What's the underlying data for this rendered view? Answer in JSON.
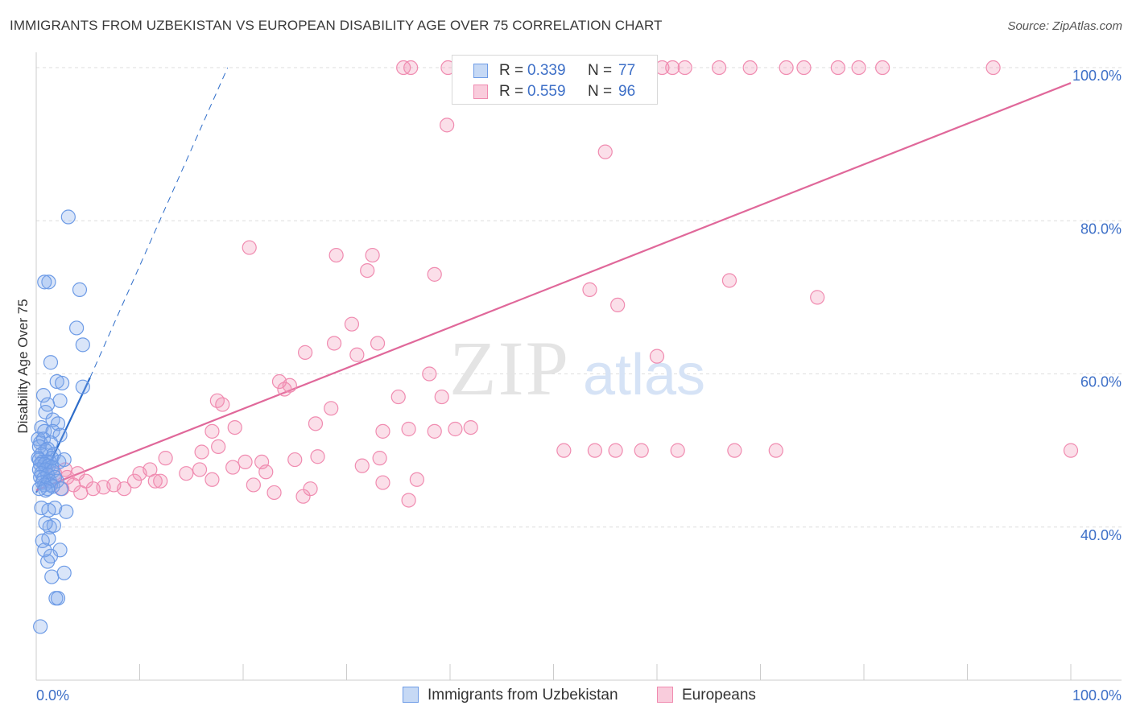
{
  "chart_data": {
    "type": "scatter",
    "title": "IMMIGRANTS FROM UZBEKISTAN VS EUROPEAN DISABILITY AGE OVER 75 CORRELATION CHART",
    "source": "Source: ZipAtlas.com",
    "xlabel": "",
    "ylabel": "Disability Age Over 75",
    "xlim": [
      0,
      105
    ],
    "ylim": [
      20,
      102
    ],
    "x_tick_labels": [
      "0.0%",
      "100.0%"
    ],
    "y_tick_labels": [
      "40.0%",
      "60.0%",
      "80.0%",
      "100.0%"
    ],
    "y_gridlines": [
      40,
      60,
      80,
      100
    ],
    "watermark": {
      "zip": "ZIP",
      "atlas": "atlas"
    },
    "legend": [
      {
        "r_label": "R =",
        "r_value": "0.339",
        "n_label": "N =",
        "n_value": "77"
      },
      {
        "r_label": "R =",
        "r_value": "0.559",
        "n_label": "N =",
        "n_value": "96"
      }
    ],
    "series": [
      {
        "name": "Immigrants from Uzbekistan",
        "color": "#6d9be6",
        "line_color": "#2d6cc9",
        "trend": {
          "x0": 0,
          "y0": 44.5,
          "x1": 5.2,
          "y1": 59.5,
          "dash_to_x": 18.5,
          "dash_to_y": 100
        },
        "x": [
          3.1,
          1.2,
          0.8,
          4.2,
          3.9,
          4.5,
          1.4,
          2.0,
          2.5,
          2.3,
          0.7,
          1.1,
          0.9,
          1.6,
          0.5,
          2.1,
          0.8,
          1.6,
          2.3,
          0.2,
          0.7,
          0.4,
          1.4,
          0.3,
          1.1,
          0.9,
          1.7,
          0.5,
          0.2,
          1.5,
          0.3,
          1.3,
          0.6,
          1.0,
          2.2,
          0.4,
          0.8,
          1.2,
          1.5,
          2.7,
          0.3,
          0.9,
          1.6,
          0.5,
          1.1,
          1.8,
          0.4,
          0.7,
          1.3,
          2.0,
          0.6,
          1.4,
          0.8,
          1.6,
          1.1,
          2.4,
          0.9,
          1.8,
          1.2,
          2.9,
          2.7,
          1.3,
          1.7,
          4.5,
          2.3,
          1.2,
          0.6,
          1.4,
          0.8,
          1.5,
          1.1,
          0.5,
          0.9,
          0.3,
          1.9,
          2.1,
          0.4
        ],
        "y": [
          80.5,
          72.0,
          72.0,
          71.0,
          66.0,
          63.8,
          61.5,
          59.0,
          58.8,
          56.5,
          57.2,
          56.0,
          55.0,
          54.0,
          53.0,
          53.5,
          52.5,
          52.5,
          52.0,
          51.5,
          51.5,
          51.0,
          51.0,
          50.5,
          50.2,
          50.0,
          49.5,
          49.5,
          49.0,
          49.0,
          48.8,
          48.5,
          48.5,
          48.5,
          48.5,
          48.2,
          48.2,
          48.0,
          47.8,
          48.8,
          47.5,
          47.5,
          47.3,
          47.0,
          46.8,
          46.5,
          46.5,
          46.3,
          46.0,
          46.0,
          45.8,
          45.5,
          45.5,
          45.3,
          45.0,
          45.0,
          44.8,
          42.5,
          42.2,
          42.0,
          34.0,
          40.0,
          40.2,
          58.3,
          37.0,
          38.5,
          38.2,
          36.2,
          37.0,
          33.5,
          35.5,
          42.5,
          40.5,
          45.0,
          30.7,
          30.7,
          27.0
        ],
        "points_note": "approximate positions read from plot"
      },
      {
        "name": "Europeans",
        "color": "#f08bb0",
        "line_color": "#e0689a",
        "trend": {
          "x0": 0,
          "y0": 44.8,
          "x1": 100,
          "y1": 98.0
        },
        "x": [
          35.5,
          36.2,
          39.8,
          42.4,
          46.5,
          60.5,
          61.5,
          62.7,
          66.0,
          69.0,
          72.5,
          74.2,
          77.5,
          79.5,
          81.8,
          92.5,
          39.7,
          55.0,
          20.6,
          32.5,
          29.0,
          32.0,
          38.5,
          53.5,
          56.2,
          60.0,
          67.0,
          75.5,
          23.5,
          30.5,
          26.0,
          33.0,
          35.0,
          28.8,
          39.2,
          38.0,
          31.0,
          24.0,
          17.0,
          19.2,
          28.5,
          17.5,
          18.0,
          24.5,
          33.5,
          38.5,
          42.0,
          27.0,
          31.5,
          36.0,
          40.5,
          51.0,
          54.0,
          56.0,
          58.5,
          62.0,
          67.5,
          71.5,
          100.0,
          16.0,
          17.6,
          12.5,
          14.5,
          15.8,
          11.0,
          11.5,
          10.0,
          12.0,
          17.0,
          19.0,
          20.2,
          21.8,
          27.2,
          25.0,
          9.5,
          8.5,
          7.5,
          6.5,
          5.5,
          4.8,
          4.3,
          3.6,
          2.5,
          3.0,
          1.8,
          4.0,
          2.8,
          21.0,
          25.8,
          23.0,
          26.5,
          22.2,
          33.5,
          36.8,
          33.2,
          36.0
        ],
        "y": [
          100.0,
          100.0,
          100.0,
          100.0,
          100.0,
          100.0,
          100.0,
          100.0,
          100.0,
          100.0,
          100.0,
          100.0,
          100.0,
          100.0,
          100.0,
          100.0,
          92.5,
          89.0,
          76.5,
          75.5,
          75.5,
          73.5,
          73.0,
          71.0,
          69.0,
          62.3,
          72.2,
          70.0,
          59.0,
          66.5,
          62.8,
          64.0,
          57.0,
          64.0,
          57.0,
          60.0,
          62.5,
          58.0,
          52.5,
          53.0,
          55.5,
          56.5,
          56.0,
          58.5,
          52.5,
          52.5,
          53.0,
          53.5,
          48.0,
          52.8,
          52.8,
          50.0,
          50.0,
          50.0,
          50.0,
          50.0,
          50.0,
          50.0,
          50.0,
          49.8,
          50.5,
          49.0,
          47.0,
          47.5,
          47.5,
          46.0,
          47.0,
          46.0,
          46.2,
          47.8,
          48.5,
          48.5,
          49.2,
          48.8,
          46.0,
          45.0,
          45.5,
          45.2,
          45.0,
          46.0,
          44.5,
          45.5,
          45.0,
          46.5,
          47.0,
          47.0,
          47.5,
          45.5,
          44.0,
          44.5,
          45.0,
          47.2,
          45.8,
          46.2,
          49.0,
          43.5
        ],
        "points_note": "approximate positions read from plot"
      }
    ]
  }
}
